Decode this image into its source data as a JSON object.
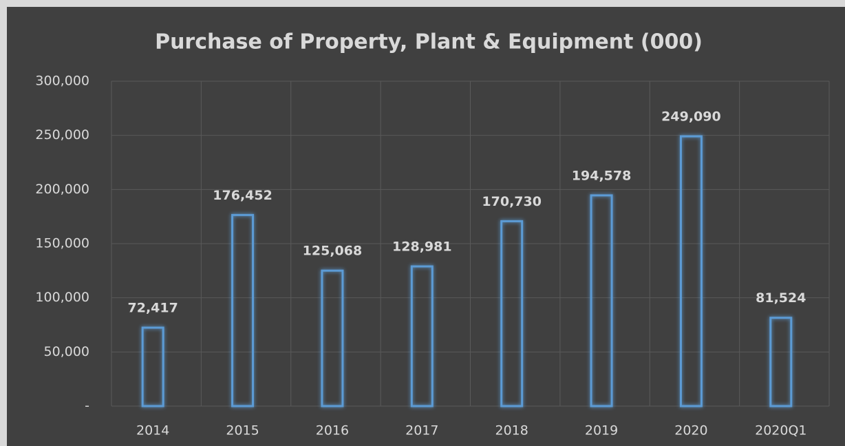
{
  "chart_data": {
    "type": "bar",
    "title": "Purchase of Property, Plant & Equipment (000)",
    "categories": [
      "2014",
      "2015",
      "2016",
      "2017",
      "2018",
      "2019",
      "2020",
      "2020Q1"
    ],
    "values": [
      72417,
      176452,
      125068,
      128981,
      170730,
      194578,
      249090,
      81524
    ],
    "value_labels": [
      "72,417",
      "176,452",
      "125,068",
      "128,981",
      "170,730",
      "194,578",
      "249,090",
      "81,524"
    ],
    "color": "#5b9bd5",
    "ylim": [
      0,
      300000
    ],
    "yticks": [
      {
        "value": 0,
        "label": "-"
      },
      {
        "value": 50000,
        "label": "50,000"
      },
      {
        "value": 100000,
        "label": "100,000"
      },
      {
        "value": 150000,
        "label": "150,000"
      },
      {
        "value": 200000,
        "label": "200,000"
      },
      {
        "value": 250000,
        "label": "250,000"
      },
      {
        "value": 300000,
        "label": "300,000"
      }
    ],
    "grid": true
  }
}
